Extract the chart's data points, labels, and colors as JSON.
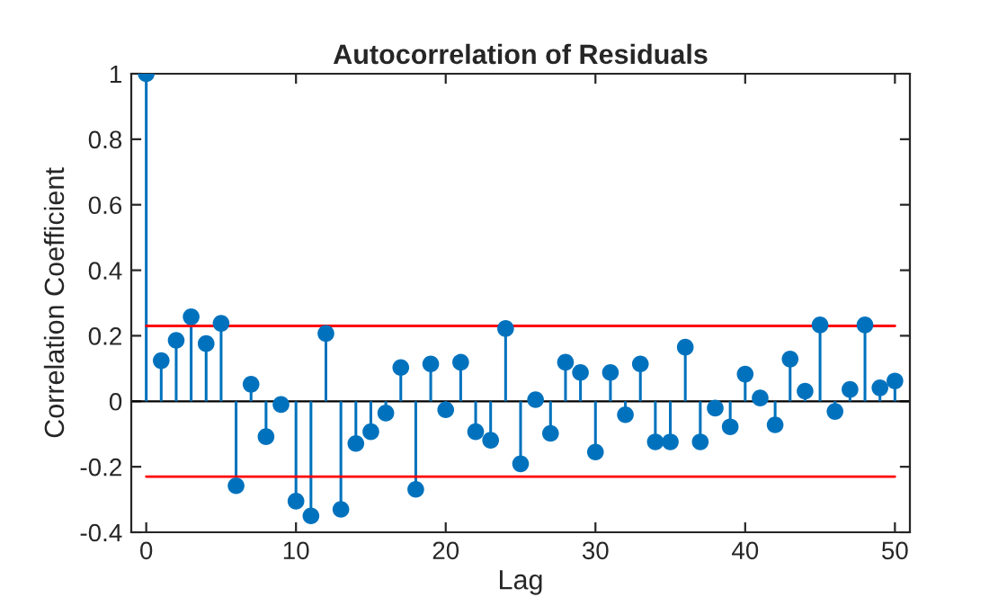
{
  "chart_data": {
    "type": "lollipop",
    "title": "Autocorrelation of Residuals",
    "xlabel": "Lag",
    "ylabel": "Correlation Coefficient",
    "x": [
      0,
      1,
      2,
      3,
      4,
      5,
      6,
      7,
      8,
      9,
      10,
      11,
      12,
      13,
      14,
      15,
      16,
      17,
      18,
      19,
      20,
      21,
      22,
      23,
      24,
      25,
      26,
      27,
      28,
      29,
      30,
      31,
      32,
      33,
      34,
      35,
      36,
      37,
      38,
      39,
      40,
      41,
      42,
      43,
      44,
      45,
      46,
      47,
      48,
      49,
      50
    ],
    "values": [
      1,
      0.124,
      0.186,
      0.258,
      0.176,
      0.238,
      -0.258,
      0.052,
      -0.108,
      -0.01,
      -0.305,
      -0.35,
      0.207,
      -0.33,
      -0.129,
      -0.093,
      -0.036,
      0.103,
      -0.269,
      0.114,
      -0.026,
      0.119,
      -0.093,
      -0.119,
      0.222,
      -0.191,
      0.005,
      -0.098,
      0.119,
      0.088,
      -0.155,
      0.088,
      -0.041,
      0.114,
      -0.124,
      -0.124,
      0.165,
      -0.124,
      -0.021,
      -0.078,
      0.083,
      0.01,
      -0.072,
      0.129,
      0.031,
      0.233,
      -0.031,
      0.036,
      0.233,
      0.041,
      0.062
    ],
    "color": "#0072bd",
    "marker": "circle",
    "xlim": [
      -1,
      51
    ],
    "xticks": [
      0,
      10,
      20,
      30,
      40,
      50
    ],
    "ylim": [
      -0.4,
      1
    ],
    "yticks": [
      -0.4,
      -0.2,
      0,
      0.2,
      0.4,
      0.6,
      0.8,
      1
    ],
    "ref_lines": [
      {
        "axis": "y",
        "value": 0.23,
        "color": "#ff0000"
      },
      {
        "axis": "y",
        "value": -0.23,
        "color": "#ff0000"
      }
    ],
    "grid": false
  }
}
